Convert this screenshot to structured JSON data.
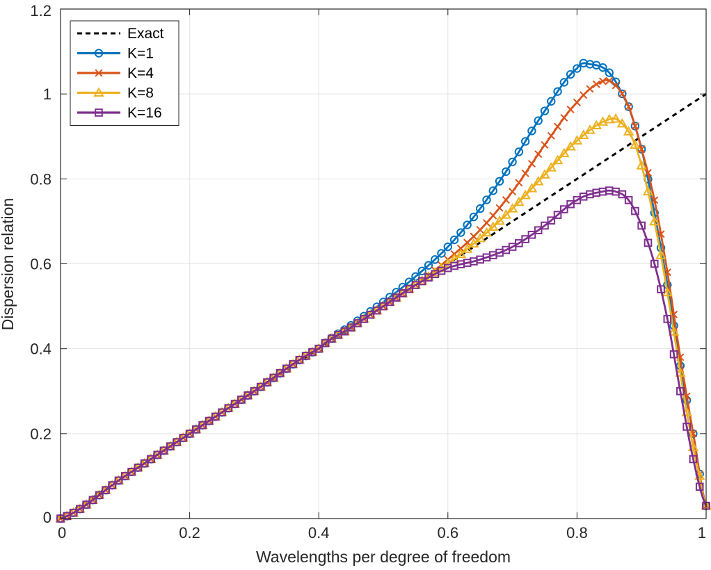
{
  "chart_data": {
    "type": "line",
    "title": "",
    "xlabel": "Wavelengths per degree of freedom",
    "ylabel": "Dispersion relation",
    "xlim": [
      0,
      1
    ],
    "ylim": [
      0,
      1.2
    ],
    "xticks": [
      0,
      0.2,
      0.4,
      0.6,
      0.8,
      1
    ],
    "yticks": [
      0,
      0.2,
      0.4,
      0.6,
      0.8,
      1,
      1.2
    ],
    "xtick_labels": [
      "0",
      "0.2",
      "0.4",
      "0.6",
      "0.8",
      "1"
    ],
    "ytick_labels": [
      "0",
      "0.2",
      "0.4",
      "0.6",
      "0.8",
      "1",
      "1.2"
    ],
    "grid": true,
    "legend_position": "top-left",
    "series": [
      {
        "name": "Exact",
        "color": "#000000",
        "style": "dashed",
        "marker": "none",
        "x": [
          0,
          1
        ],
        "y": [
          0,
          1
        ]
      },
      {
        "name": "K=1",
        "color": "#0072BD",
        "style": "solid",
        "marker": "circle",
        "x": [
          0,
          0.1,
          0.2,
          0.3,
          0.4,
          0.45,
          0.5,
          0.55,
          0.6,
          0.65,
          0.7,
          0.75,
          0.8,
          0.82,
          0.85,
          0.88,
          0.9,
          0.92,
          0.94,
          0.96,
          0.98,
          1.0
        ],
        "y": [
          0,
          0.1,
          0.2,
          0.3,
          0.4,
          0.455,
          0.51,
          0.57,
          0.64,
          0.73,
          0.84,
          0.96,
          1.06,
          1.07,
          1.05,
          0.97,
          0.87,
          0.72,
          0.55,
          0.36,
          0.2,
          0.03
        ]
      },
      {
        "name": "K=4",
        "color": "#D95319",
        "style": "solid",
        "marker": "x",
        "x": [
          0,
          0.1,
          0.2,
          0.3,
          0.4,
          0.45,
          0.5,
          0.55,
          0.6,
          0.65,
          0.7,
          0.75,
          0.8,
          0.84,
          0.86,
          0.88,
          0.9,
          0.92,
          0.94,
          0.96,
          0.98,
          1.0
        ],
        "y": [
          0,
          0.1,
          0.2,
          0.3,
          0.4,
          0.45,
          0.5,
          0.55,
          0.61,
          0.68,
          0.77,
          0.88,
          0.98,
          1.03,
          1.02,
          0.97,
          0.87,
          0.75,
          0.58,
          0.38,
          0.2,
          0.03
        ]
      },
      {
        "name": "K=8",
        "color": "#EDB120",
        "style": "solid",
        "marker": "triangle",
        "x": [
          0,
          0.1,
          0.2,
          0.3,
          0.4,
          0.45,
          0.5,
          0.55,
          0.6,
          0.65,
          0.7,
          0.75,
          0.8,
          0.85,
          0.87,
          0.89,
          0.91,
          0.93,
          0.95,
          0.97,
          0.99,
          1.0
        ],
        "y": [
          0,
          0.1,
          0.2,
          0.3,
          0.4,
          0.45,
          0.5,
          0.55,
          0.6,
          0.66,
          0.73,
          0.81,
          0.89,
          0.94,
          0.93,
          0.88,
          0.77,
          0.62,
          0.44,
          0.25,
          0.1,
          0.03
        ]
      },
      {
        "name": "K=16",
        "color": "#7E2F8E",
        "style": "solid",
        "marker": "square",
        "x": [
          0,
          0.1,
          0.2,
          0.3,
          0.4,
          0.45,
          0.5,
          0.55,
          0.6,
          0.65,
          0.7,
          0.75,
          0.8,
          0.84,
          0.86,
          0.88,
          0.9,
          0.92,
          0.94,
          0.96,
          0.98,
          1.0
        ],
        "y": [
          0,
          0.1,
          0.2,
          0.3,
          0.4,
          0.45,
          0.5,
          0.55,
          0.59,
          0.61,
          0.64,
          0.69,
          0.75,
          0.77,
          0.77,
          0.75,
          0.69,
          0.6,
          0.47,
          0.3,
          0.14,
          0.03
        ]
      }
    ]
  }
}
